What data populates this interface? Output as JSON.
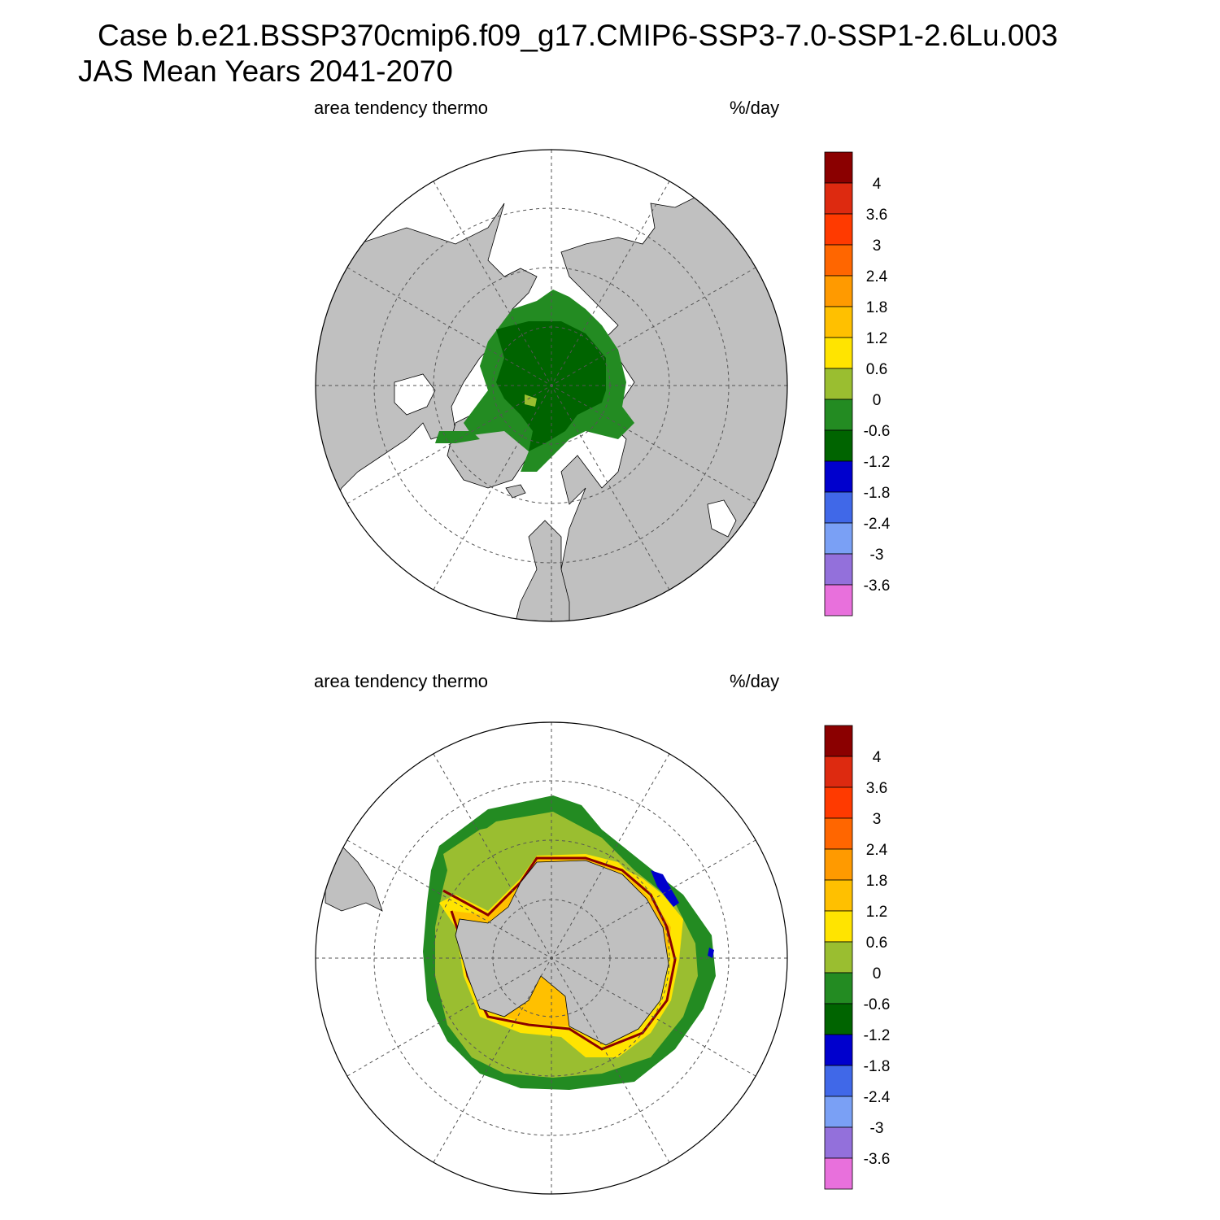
{
  "header": {
    "case_line": "Case b.e21.BSSP370cmip6.f09_g17.CMIP6-SSP3-7.0-SSP1-2.6Lu.003",
    "season_line": "JAS Mean   Years 2041-2070"
  },
  "panels": [
    {
      "id": "north",
      "hemisphere": "Arctic",
      "variable_label": "area tendency thermo",
      "units_label": "%/day"
    },
    {
      "id": "south",
      "hemisphere": "Antarctic",
      "variable_label": "area tendency thermo",
      "units_label": "%/day"
    }
  ],
  "colorbar": {
    "tick_labels": [
      "4",
      "3.6",
      "3",
      "2.4",
      "1.8",
      "1.2",
      "0.6",
      "0",
      "-0.6",
      "-1.2",
      "-1.8",
      "-2.4",
      "-3",
      "-3.6"
    ],
    "colors": [
      "#8b0000",
      "#dd2a10",
      "#ff3a00",
      "#ff6600",
      "#ff9a00",
      "#ffc000",
      "#ffe400",
      "#9abe30",
      "#238b22",
      "#006400",
      "#0000cd",
      "#4068e8",
      "#7aa0f5",
      "#9370db",
      "#e870dc"
    ]
  },
  "map_colors": {
    "land": "#c0c0c0",
    "ocean": "#ffffff",
    "grid": "#555555"
  },
  "legend_items": {
    "north": [
      {
        "color": "#006400",
        "level": "-1.2 to -0.6"
      },
      {
        "color": "#238b22",
        "level": "-0.6 to 0"
      },
      {
        "color": "#9abe30",
        "level": "0 to 0.6"
      }
    ],
    "south": [
      {
        "color": "#238b22",
        "level": "-0.6 to 0"
      },
      {
        "color": "#9abe30",
        "level": "0 to 0.6"
      },
      {
        "color": "#ffe400",
        "level": "0.6 to 1.2"
      },
      {
        "color": "#ffc000",
        "level": "1.2 to 1.8"
      },
      {
        "color": "#8b0000",
        "level": "> 4"
      },
      {
        "color": "#0000cd",
        "level": "-1.8 to -1.2"
      }
    ]
  }
}
